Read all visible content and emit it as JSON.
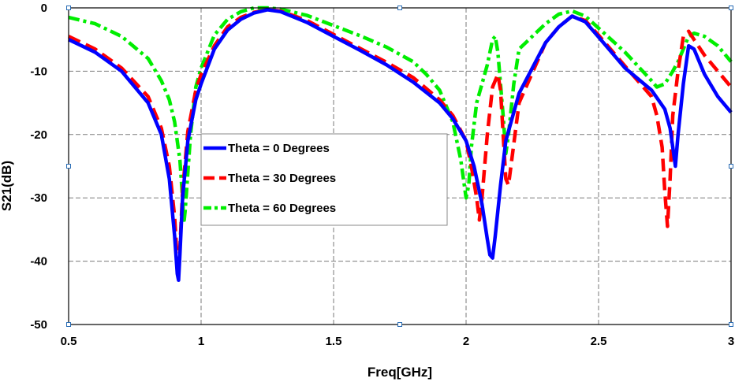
{
  "chart_data": {
    "type": "line",
    "title": "",
    "xlabel": "Freq[GHz]",
    "ylabel": "S21(dB)",
    "xlim": [
      0.5,
      3.0
    ],
    "ylim": [
      -50,
      0
    ],
    "xticks": [
      0.5,
      1.0,
      1.5,
      2.0,
      2.5,
      3.0
    ],
    "xtick_labels": [
      "0.5",
      "1",
      "1.5",
      "2",
      "2.5",
      "3"
    ],
    "yticks": [
      0,
      -10,
      -20,
      -30,
      -40,
      -50
    ],
    "ytick_labels": [
      "0",
      "-10",
      "-20",
      "-30",
      "-40",
      "-50"
    ],
    "grid": true,
    "legend_position": "center-left",
    "series": [
      {
        "name": "Theta = 0 Degrees",
        "color": "#0000ff",
        "style": "solid",
        "x": [
          0.5,
          0.6,
          0.7,
          0.8,
          0.85,
          0.88,
          0.9,
          0.91,
          0.915,
          0.92,
          0.93,
          0.95,
          0.98,
          1.0,
          1.05,
          1.1,
          1.15,
          1.2,
          1.25,
          1.3,
          1.4,
          1.5,
          1.6,
          1.7,
          1.8,
          1.9,
          1.95,
          2.0,
          2.03,
          2.06,
          2.08,
          2.09,
          2.1,
          2.11,
          2.13,
          2.15,
          2.2,
          2.3,
          2.35,
          2.4,
          2.45,
          2.5,
          2.6,
          2.7,
          2.75,
          2.77,
          2.78,
          2.79,
          2.8,
          2.82,
          2.84,
          2.86,
          2.9,
          2.95,
          3.0
        ],
        "values": [
          -5,
          -7,
          -10,
          -15,
          -20,
          -27,
          -36,
          -42,
          -43,
          -39,
          -30,
          -21,
          -14.5,
          -12,
          -6.5,
          -3.5,
          -1.8,
          -0.8,
          -0.3,
          -0.6,
          -2.3,
          -4.5,
          -6.7,
          -9,
          -11.7,
          -15,
          -17.5,
          -21,
          -25,
          -31,
          -36.5,
          -39,
          -39.5,
          -36,
          -28,
          -21,
          -13.5,
          -5.5,
          -3,
          -1.3,
          -2.2,
          -4.6,
          -9.5,
          -13,
          -16,
          -19,
          -22,
          -25,
          -20,
          -12,
          -6,
          -6.5,
          -10.5,
          -14,
          -16.5
        ]
      },
      {
        "name": "Theta = 30 Degrees",
        "color": "#ff0000",
        "style": "dashed",
        "x": [
          0.5,
          0.6,
          0.7,
          0.8,
          0.85,
          0.88,
          0.9,
          0.91,
          0.915,
          0.92,
          0.93,
          0.95,
          0.98,
          1.0,
          1.05,
          1.1,
          1.15,
          1.2,
          1.25,
          1.3,
          1.4,
          1.5,
          1.6,
          1.7,
          1.8,
          1.9,
          1.95,
          2.0,
          2.02,
          2.04,
          2.05,
          2.06,
          2.08,
          2.1,
          2.12,
          2.13,
          2.14,
          2.15,
          2.16,
          2.2,
          2.3,
          2.35,
          2.4,
          2.45,
          2.5,
          2.6,
          2.7,
          2.72,
          2.74,
          2.75,
          2.76,
          2.77,
          2.78,
          2.8,
          2.82,
          2.84,
          2.86,
          2.9,
          2.95,
          3.0
        ],
        "values": [
          -4.5,
          -6.5,
          -9.5,
          -14,
          -19,
          -25,
          -33,
          -40,
          -42,
          -38,
          -29,
          -19.5,
          -13,
          -10.5,
          -6,
          -3,
          -1.5,
          -0.7,
          -0.3,
          -0.5,
          -2,
          -4.2,
          -6.4,
          -8.6,
          -11,
          -14.5,
          -17,
          -21,
          -25,
          -30,
          -33.5,
          -30,
          -20,
          -12.5,
          -10.5,
          -13,
          -20,
          -27,
          -28,
          -15,
          -5.5,
          -3,
          -1.3,
          -2,
          -4.3,
          -9.2,
          -14,
          -17,
          -22,
          -29,
          -34.5,
          -27,
          -17,
          -10,
          -4.5,
          -3.7,
          -5,
          -7.5,
          -10,
          -12.5
        ]
      },
      {
        "name": "Theta = 60 Degrees",
        "color": "#00ee00",
        "style": "dashdot",
        "x": [
          0.5,
          0.6,
          0.7,
          0.8,
          0.85,
          0.88,
          0.9,
          0.92,
          0.93,
          0.935,
          0.94,
          0.96,
          0.98,
          1.0,
          1.05,
          1.1,
          1.15,
          1.2,
          1.25,
          1.3,
          1.4,
          1.5,
          1.6,
          1.7,
          1.8,
          1.85,
          1.9,
          1.95,
          1.98,
          2.0,
          2.01,
          2.02,
          2.04,
          2.06,
          2.08,
          2.1,
          2.11,
          2.12,
          2.14,
          2.15,
          2.16,
          2.18,
          2.2,
          2.3,
          2.35,
          2.4,
          2.45,
          2.5,
          2.6,
          2.7,
          2.72,
          2.75,
          2.78,
          2.8,
          2.82,
          2.84,
          2.86,
          2.9,
          2.95,
          3.0
        ],
        "values": [
          -1.5,
          -2.5,
          -4.5,
          -8,
          -11.5,
          -14.5,
          -18,
          -24,
          -30,
          -34,
          -32,
          -20,
          -12.5,
          -9.5,
          -4.3,
          -1.8,
          -0.6,
          0.0,
          0.0,
          -0.2,
          -1.2,
          -2.8,
          -4.4,
          -6.2,
          -8.5,
          -10.5,
          -13,
          -18,
          -24,
          -30,
          -28,
          -22,
          -15,
          -12,
          -9,
          -5,
          -4.5,
          -7,
          -17,
          -23,
          -20,
          -12,
          -6.5,
          -2.5,
          -1.0,
          -0.5,
          -1.3,
          -3.2,
          -7,
          -11.5,
          -12.5,
          -12,
          -10,
          -8.5,
          -6.5,
          -4.5,
          -4,
          -4.5,
          -6,
          -8.5
        ]
      }
    ]
  }
}
